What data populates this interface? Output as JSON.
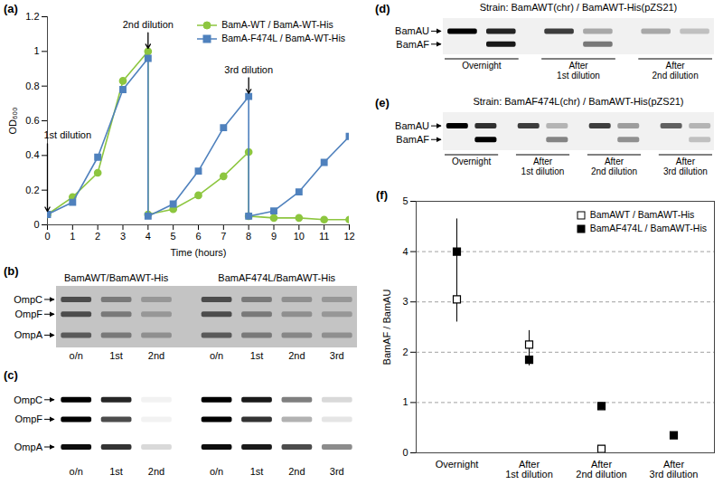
{
  "chart_data": [
    {
      "panel": "(a)",
      "type": "line",
      "x": [
        0,
        1,
        2,
        3,
        4,
        4,
        5,
        6,
        7,
        8,
        8,
        9,
        10,
        11,
        12
      ],
      "xlabel": "Time (hours)",
      "ylabel": "OD₆₀₀",
      "xlim": [
        0,
        12
      ],
      "xticks": [
        0,
        1,
        2,
        3,
        4,
        5,
        6,
        7,
        8,
        9,
        10,
        11,
        12
      ],
      "ylim": [
        0,
        1.2
      ],
      "yticks": [
        0,
        0.2,
        0.4,
        0.6,
        0.8,
        1,
        1.2
      ],
      "legend": "top-right",
      "series": [
        {
          "name": "BamA-WT / BamA-WT-His",
          "color": "#8dc63f",
          "marker": "circle",
          "values": [
            0.06,
            0.16,
            0.3,
            0.83,
            1.0,
            0.06,
            0.09,
            0.17,
            0.28,
            0.42,
            0.05,
            0.04,
            0.04,
            0.03,
            0.03
          ]
        },
        {
          "name": "BamA-F474L / BamA-WT-His",
          "color": "#4f81bd",
          "marker": "square",
          "values": [
            0.06,
            0.13,
            0.39,
            0.78,
            0.96,
            0.05,
            0.12,
            0.31,
            0.56,
            0.74,
            0.05,
            0.08,
            0.19,
            0.36,
            0.51
          ]
        }
      ],
      "annotations": [
        {
          "text": "1st dilution",
          "x": 0
        },
        {
          "text": "2nd dilution",
          "x": 4
        },
        {
          "text": "3rd dilution",
          "x": 8
        }
      ]
    },
    {
      "panel": "(f)",
      "type": "scatter",
      "categories": [
        "Overnight",
        "After\n1st dilution",
        "After\n2nd dilution",
        "After\n3rd dilution"
      ],
      "ylabel": "BamAF / BamAU",
      "ylim": [
        0,
        5
      ],
      "yticks": [
        0,
        1,
        2,
        3,
        4,
        5
      ],
      "grid": true,
      "legend": "top-right",
      "series": [
        {
          "name": "BamAWT / BamAWT-His",
          "color": "#000000",
          "marker": "open square",
          "values": [
            3.05,
            2.15,
            0.08,
            null
          ],
          "errors": [
            0.45,
            0.28,
            null,
            null
          ]
        },
        {
          "name": "BamAF474L / BamAWT-His",
          "color": "#000000",
          "marker": "square",
          "values": [
            4.0,
            1.85,
            0.93,
            0.35
          ],
          "errors": [
            0.65,
            0.12,
            null,
            null
          ]
        }
      ]
    }
  ],
  "gels": [
    {
      "panel": "(b)",
      "bands": [
        "OmpC",
        "OmpF",
        "OmpA"
      ],
      "groups": [
        {
          "label": "BamAWT/BamAWT-His",
          "lanes": [
            "o/n",
            "1st",
            "2nd"
          ],
          "intensity": [
            [
              0.8,
              0.8,
              0.7
            ],
            [
              0.5,
              0.5,
              0.5
            ],
            [
              0.3,
              0.3,
              0.35
            ]
          ]
        },
        {
          "label": "BamAF474L/BamAWT-His",
          "lanes": [
            "o/n",
            "1st",
            "2nd",
            "3rd"
          ],
          "intensity": [
            [
              0.8,
              0.8,
              0.7
            ],
            [
              0.5,
              0.5,
              0.5
            ],
            [
              0.35,
              0.35,
              0.4
            ],
            [
              0.3,
              0.3,
              0.35
            ]
          ]
        }
      ]
    },
    {
      "panel": "(c)",
      "bands": [
        "OmpC",
        "OmpF",
        "OmpA"
      ],
      "groups": [
        {
          "lanes": [
            "o/n",
            "1st",
            "2nd"
          ],
          "intensity": [
            [
              1,
              1,
              0.95
            ],
            [
              0.85,
              0.7,
              0.8
            ],
            [
              0.05,
              0.05,
              0.15
            ]
          ]
        },
        {
          "lanes": [
            "o/n",
            "1st",
            "2nd",
            "3rd"
          ],
          "intensity": [
            [
              1,
              1,
              0.95
            ],
            [
              0.9,
              0.8,
              0.9
            ],
            [
              0.5,
              0.3,
              0.7
            ],
            [
              0.15,
              0.1,
              0.45
            ]
          ]
        }
      ]
    },
    {
      "panel": "(d)",
      "title": "Strain: BamAWT(chr) / BamAWT-His(pZS21)",
      "bands": [
        "BamAU",
        "BamAF"
      ],
      "groups": [
        {
          "label": "Overnight",
          "intensity": [
            [
              1,
              0
            ],
            [
              0.85,
              0.9
            ]
          ]
        },
        {
          "label": "After\n1st dilution",
          "intensity": [
            [
              0.75,
              0
            ],
            [
              0.3,
              0.5
            ]
          ]
        },
        {
          "label": "After\n2nd dilution",
          "intensity": [
            [
              0.3,
              0
            ],
            [
              0.2,
              0
            ]
          ]
        }
      ]
    },
    {
      "panel": "(e)",
      "title": "Strain: BamAF474L(chr) / BamAWT-His(pZS21)",
      "bands": [
        "BamAU",
        "BamAF"
      ],
      "groups": [
        {
          "label": "Overnight",
          "intensity": [
            [
              1,
              0
            ],
            [
              0.8,
              1
            ]
          ]
        },
        {
          "label": "After\n1st dilution",
          "intensity": [
            [
              0.75,
              0
            ],
            [
              0.25,
              0.45
            ]
          ]
        },
        {
          "label": "After\n2nd dilution",
          "intensity": [
            [
              0.75,
              0
            ],
            [
              0.35,
              0.4
            ]
          ]
        },
        {
          "label": "After\n3rd dilution",
          "intensity": [
            [
              0.6,
              0
            ],
            [
              0.25,
              0.2
            ]
          ]
        }
      ]
    }
  ]
}
